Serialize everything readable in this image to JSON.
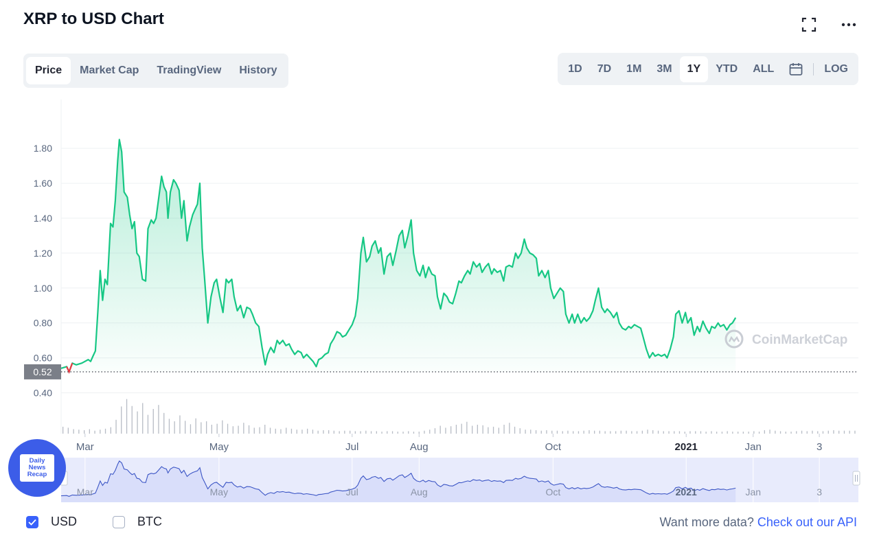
{
  "header": {
    "title": "XRP to USD Chart"
  },
  "icons": {
    "fullscreen": "fullscreen-icon",
    "more": "more-icon",
    "calendar": "calendar-icon"
  },
  "tabs": [
    {
      "label": "Price",
      "active": true
    },
    {
      "label": "Market Cap",
      "active": false
    },
    {
      "label": "TradingView",
      "active": false
    },
    {
      "label": "History",
      "active": false
    }
  ],
  "ranges": [
    {
      "label": "1D",
      "active": false
    },
    {
      "label": "7D",
      "active": false
    },
    {
      "label": "1M",
      "active": false
    },
    {
      "label": "3M",
      "active": false
    },
    {
      "label": "1Y",
      "active": true
    },
    {
      "label": "YTD",
      "active": false
    },
    {
      "label": "ALL",
      "active": false
    }
  ],
  "log_label": "LOG",
  "currencies": [
    {
      "label": "USD",
      "checked": true
    },
    {
      "label": "BTC",
      "checked": false
    }
  ],
  "api": {
    "text": "Want more data?",
    "link": "Check out our API"
  },
  "watermark": "CoinMarketCap",
  "badge": {
    "lines": [
      "Daily",
      "News",
      "Recap"
    ]
  },
  "colors": {
    "line": "#16c784",
    "area": "#16c784",
    "down": "#ea3943",
    "accent": "#3861fb",
    "navigator_fill": "#e8ebfc",
    "navigator_line": "#3b55c5"
  },
  "chart_data": {
    "type": "line",
    "title": "XRP to USD Chart",
    "xlabel": "",
    "ylabel": "",
    "yticks": [
      "1.80",
      "1.60",
      "1.40",
      "1.20",
      "1.00",
      "0.80",
      "0.60",
      "0.40"
    ],
    "ylim": [
      0.28,
      1.95
    ],
    "current_price_label": "0.52",
    "baseline_value": 0.52,
    "xlim": [
      0,
      100
    ],
    "x_ticks": [
      {
        "label": "Mar",
        "x": 3.0
      },
      {
        "label": "May",
        "x": 19.8
      },
      {
        "label": "Jul",
        "x": 36.5
      },
      {
        "label": "Aug",
        "x": 44.9
      },
      {
        "label": "Oct",
        "x": 61.7
      },
      {
        "label": "2021",
        "x": 78.4,
        "bold": true
      },
      {
        "label": "Jan",
        "x": 86.8
      },
      {
        "label": "3",
        "x": 95.1
      }
    ],
    "series": [
      {
        "values": [
          [
            0,
            0.54
          ],
          [
            0.7,
            0.55
          ],
          [
            1.0,
            0.52
          ],
          [
            1.4,
            0.57
          ],
          [
            1.9,
            0.56
          ],
          [
            2.6,
            0.57
          ],
          [
            3.4,
            0.59
          ],
          [
            3.7,
            0.58
          ],
          [
            4.0,
            0.61
          ],
          [
            4.3,
            0.64
          ],
          [
            4.6,
            0.86
          ],
          [
            4.9,
            1.1
          ],
          [
            5.2,
            0.93
          ],
          [
            5.5,
            1.05
          ],
          [
            5.8,
            1.02
          ],
          [
            6.2,
            1.37
          ],
          [
            6.5,
            1.35
          ],
          [
            6.8,
            1.5
          ],
          [
            7.1,
            1.73
          ],
          [
            7.3,
            1.85
          ],
          [
            7.6,
            1.78
          ],
          [
            7.9,
            1.55
          ],
          [
            8.3,
            1.52
          ],
          [
            8.6,
            1.42
          ],
          [
            8.9,
            1.34
          ],
          [
            9.2,
            1.38
          ],
          [
            9.5,
            1.2
          ],
          [
            9.8,
            1.18
          ],
          [
            10.2,
            1.05
          ],
          [
            10.6,
            1.04
          ],
          [
            10.9,
            1.34
          ],
          [
            11.3,
            1.39
          ],
          [
            11.6,
            1.37
          ],
          [
            11.9,
            1.4
          ],
          [
            12.2,
            1.5
          ],
          [
            12.6,
            1.64
          ],
          [
            12.9,
            1.58
          ],
          [
            13.2,
            1.55
          ],
          [
            13.4,
            1.4
          ],
          [
            13.7,
            1.55
          ],
          [
            14.1,
            1.62
          ],
          [
            14.4,
            1.6
          ],
          [
            14.8,
            1.56
          ],
          [
            15.1,
            1.4
          ],
          [
            15.4,
            1.5
          ],
          [
            15.8,
            1.27
          ],
          [
            16.1,
            1.35
          ],
          [
            16.5,
            1.42
          ],
          [
            16.8,
            1.45
          ],
          [
            17.1,
            1.48
          ],
          [
            17.4,
            1.6
          ],
          [
            17.7,
            1.23
          ],
          [
            18.0,
            1.05
          ],
          [
            18.4,
            0.8
          ],
          [
            18.8,
            0.95
          ],
          [
            19.2,
            1.03
          ],
          [
            19.5,
            1.05
          ],
          [
            19.9,
            0.95
          ],
          [
            20.3,
            0.86
          ],
          [
            20.7,
            1.05
          ],
          [
            21.0,
            1.03
          ],
          [
            21.4,
            1.05
          ],
          [
            21.7,
            0.95
          ],
          [
            22.1,
            0.87
          ],
          [
            22.5,
            0.9
          ],
          [
            22.9,
            0.83
          ],
          [
            23.3,
            0.89
          ],
          [
            23.7,
            0.88
          ],
          [
            24.0,
            0.85
          ],
          [
            24.4,
            0.8
          ],
          [
            24.8,
            0.78
          ],
          [
            25.2,
            0.66
          ],
          [
            25.6,
            0.56
          ],
          [
            25.9,
            0.62
          ],
          [
            26.3,
            0.66
          ],
          [
            26.7,
            0.63
          ],
          [
            27.1,
            0.7
          ],
          [
            27.4,
            0.68
          ],
          [
            27.8,
            0.7
          ],
          [
            28.2,
            0.67
          ],
          [
            28.6,
            0.68
          ],
          [
            28.9,
            0.65
          ],
          [
            29.3,
            0.62
          ],
          [
            29.7,
            0.64
          ],
          [
            30.1,
            0.63
          ],
          [
            30.4,
            0.6
          ],
          [
            30.8,
            0.62
          ],
          [
            31.2,
            0.6
          ],
          [
            31.6,
            0.58
          ],
          [
            32.0,
            0.55
          ],
          [
            32.3,
            0.59
          ],
          [
            32.7,
            0.6
          ],
          [
            33.1,
            0.62
          ],
          [
            33.5,
            0.63
          ],
          [
            33.8,
            0.68
          ],
          [
            34.2,
            0.71
          ],
          [
            34.6,
            0.75
          ],
          [
            35.0,
            0.74
          ],
          [
            35.3,
            0.72
          ],
          [
            35.7,
            0.73
          ],
          [
            36.1,
            0.76
          ],
          [
            36.5,
            0.79
          ],
          [
            36.9,
            0.84
          ],
          [
            37.2,
            0.94
          ],
          [
            37.6,
            1.2
          ],
          [
            37.9,
            1.29
          ],
          [
            38.3,
            1.15
          ],
          [
            38.7,
            1.18
          ],
          [
            39.0,
            1.24
          ],
          [
            39.4,
            1.27
          ],
          [
            39.8,
            1.2
          ],
          [
            40.1,
            1.23
          ],
          [
            40.5,
            1.08
          ],
          [
            40.9,
            1.18
          ],
          [
            41.3,
            1.2
          ],
          [
            41.6,
            1.13
          ],
          [
            42.0,
            1.21
          ],
          [
            42.4,
            1.3
          ],
          [
            42.8,
            1.33
          ],
          [
            43.1,
            1.23
          ],
          [
            43.5,
            1.3
          ],
          [
            43.9,
            1.39
          ],
          [
            44.2,
            1.2
          ],
          [
            44.6,
            1.1
          ],
          [
            45.0,
            1.07
          ],
          [
            45.4,
            1.13
          ],
          [
            45.7,
            1.06
          ],
          [
            46.1,
            1.12
          ],
          [
            46.5,
            1.08
          ],
          [
            46.9,
            1.07
          ],
          [
            47.2,
            0.95
          ],
          [
            47.6,
            0.88
          ],
          [
            48.0,
            0.97
          ],
          [
            48.4,
            0.95
          ],
          [
            48.7,
            0.92
          ],
          [
            49.1,
            0.91
          ],
          [
            49.5,
            0.97
          ],
          [
            49.9,
            1.04
          ],
          [
            50.2,
            1.03
          ],
          [
            50.6,
            1.07
          ],
          [
            51.0,
            1.1
          ],
          [
            51.3,
            1.08
          ],
          [
            51.7,
            1.15
          ],
          [
            52.1,
            1.12
          ],
          [
            52.5,
            1.14
          ],
          [
            52.8,
            1.09
          ],
          [
            53.2,
            1.12
          ],
          [
            53.6,
            1.14
          ],
          [
            54.0,
            1.08
          ],
          [
            54.3,
            1.11
          ],
          [
            54.7,
            1.09
          ],
          [
            55.1,
            1.1
          ],
          [
            55.5,
            1.04
          ],
          [
            55.8,
            1.12
          ],
          [
            56.2,
            1.13
          ],
          [
            56.6,
            1.12
          ],
          [
            57.0,
            1.2
          ],
          [
            57.3,
            1.17
          ],
          [
            57.7,
            1.2
          ],
          [
            58.1,
            1.28
          ],
          [
            58.4,
            1.23
          ],
          [
            58.8,
            1.2
          ],
          [
            59.2,
            1.19
          ],
          [
            59.6,
            1.17
          ],
          [
            59.9,
            1.07
          ],
          [
            60.3,
            1.1
          ],
          [
            60.7,
            1.06
          ],
          [
            61.1,
            1.1
          ],
          [
            61.4,
            1.0
          ],
          [
            61.8,
            0.94
          ],
          [
            62.2,
            0.97
          ],
          [
            62.6,
            1.0
          ],
          [
            63.0,
            0.98
          ],
          [
            63.3,
            0.85
          ],
          [
            63.7,
            0.8
          ],
          [
            64.1,
            0.85
          ],
          [
            64.4,
            0.8
          ],
          [
            64.8,
            0.85
          ],
          [
            65.2,
            0.8
          ],
          [
            65.6,
            0.83
          ],
          [
            65.9,
            0.81
          ],
          [
            66.3,
            0.83
          ],
          [
            66.7,
            0.87
          ],
          [
            67.0,
            0.93
          ],
          [
            67.4,
            1.0
          ],
          [
            67.8,
            0.89
          ],
          [
            68.2,
            0.86
          ],
          [
            68.5,
            0.88
          ],
          [
            68.9,
            0.86
          ],
          [
            69.3,
            0.83
          ],
          [
            69.7,
            0.86
          ],
          [
            70.0,
            0.8
          ],
          [
            70.4,
            0.77
          ],
          [
            70.8,
            0.76
          ],
          [
            71.2,
            0.78
          ],
          [
            71.5,
            0.77
          ],
          [
            71.9,
            0.79
          ],
          [
            72.3,
            0.78
          ],
          [
            72.7,
            0.77
          ],
          [
            73.0,
            0.72
          ],
          [
            73.4,
            0.65
          ],
          [
            73.8,
            0.6
          ],
          [
            74.2,
            0.63
          ],
          [
            74.5,
            0.61
          ],
          [
            74.9,
            0.62
          ],
          [
            75.3,
            0.61
          ],
          [
            75.7,
            0.62
          ],
          [
            76.0,
            0.6
          ],
          [
            76.4,
            0.65
          ],
          [
            76.8,
            0.72
          ],
          [
            77.1,
            0.85
          ],
          [
            77.5,
            0.87
          ],
          [
            77.9,
            0.8
          ],
          [
            78.3,
            0.86
          ],
          [
            78.6,
            0.8
          ],
          [
            79.0,
            0.83
          ],
          [
            79.4,
            0.73
          ],
          [
            79.8,
            0.78
          ],
          [
            80.1,
            0.75
          ],
          [
            80.5,
            0.81
          ],
          [
            80.9,
            0.77
          ],
          [
            81.3,
            0.74
          ],
          [
            81.6,
            0.78
          ],
          [
            82.0,
            0.77
          ],
          [
            82.4,
            0.8
          ],
          [
            82.7,
            0.78
          ],
          [
            83.1,
            0.79
          ],
          [
            83.5,
            0.76
          ],
          [
            83.9,
            0.79
          ],
          [
            84.2,
            0.8
          ],
          [
            84.6,
            0.83
          ]
        ]
      }
    ],
    "volume": [
      0.14,
      0.12,
      0.09,
      0.08,
      0.07,
      0.09,
      0.06,
      0.08,
      0.1,
      0.13,
      0.28,
      0.55,
      0.7,
      0.56,
      0.45,
      0.62,
      0.38,
      0.5,
      0.58,
      0.42,
      0.3,
      0.25,
      0.37,
      0.26,
      0.19,
      0.31,
      0.23,
      0.25,
      0.18,
      0.2,
      0.27,
      0.2,
      0.15,
      0.16,
      0.22,
      0.17,
      0.12,
      0.13,
      0.18,
      0.12,
      0.1,
      0.09,
      0.12,
      0.1,
      0.08,
      0.08,
      0.1,
      0.08,
      0.06,
      0.07,
      0.07,
      0.06,
      0.05,
      0.06,
      0.06,
      0.05,
      0.05,
      0.06,
      0.05,
      0.05,
      0.04,
      0.05,
      0.05,
      0.04,
      0.04,
      0.05,
      0.04,
      0.04,
      0.06,
      0.08,
      0.11,
      0.16,
      0.12,
      0.15,
      0.18,
      0.2,
      0.24,
      0.16,
      0.18,
      0.17,
      0.13,
      0.14,
      0.12,
      0.18,
      0.22,
      0.14,
      0.11,
      0.08,
      0.08,
      0.07,
      0.06,
      0.07,
      0.06,
      0.06,
      0.05,
      0.06,
      0.05,
      0.05,
      0.06,
      0.07,
      0.06,
      0.06,
      0.05,
      0.05,
      0.05,
      0.06,
      0.06,
      0.05,
      0.05,
      0.06,
      0.08,
      0.07,
      0.06,
      0.05,
      0.05,
      0.05,
      0.05,
      0.04,
      0.05,
      0.05,
      0.05,
      0.04,
      0.05,
      0.04,
      0.04,
      0.05,
      0.04,
      0.04,
      0.04,
      0.04,
      0.05,
      0.04,
      0.07,
      0.08,
      0.06,
      0.05,
      0.04,
      0.04,
      0.05,
      0.06,
      0.05,
      0.06,
      0.05,
      0.05,
      0.06,
      0.07,
      0.06,
      0.06,
      0.06,
      0.06
    ],
    "navigator_ticks": [
      "Mar",
      "May",
      "Jul",
      "Aug",
      "Oct",
      "2021",
      "Jan",
      "3"
    ]
  }
}
